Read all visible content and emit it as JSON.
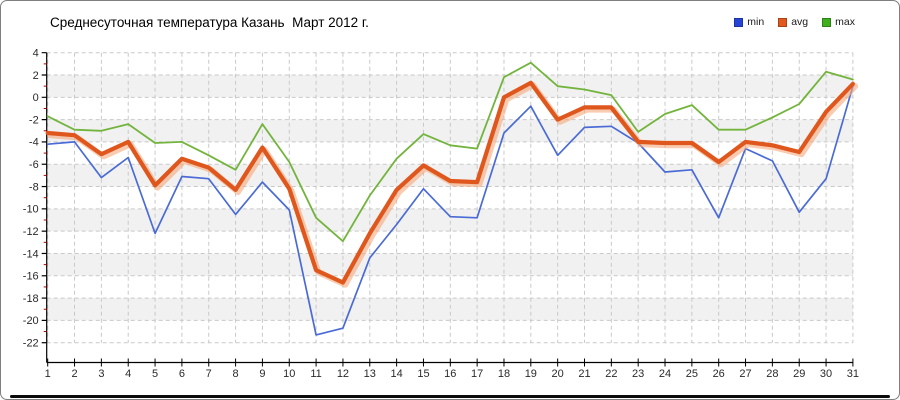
{
  "title": {
    "text": "Среднесуточная температура Казань  Март 2012 г."
  },
  "legend": {
    "items": [
      {
        "label": "min",
        "color": "#2744d4"
      },
      {
        "label": "avg",
        "color": "#e2591d"
      },
      {
        "label": "max",
        "color": "#3fae1f"
      }
    ]
  },
  "frame": {
    "border_color": "#7f7f7f",
    "bottom_bar_color": "#0a0a0a",
    "background": "#ffffff"
  },
  "chart_data": {
    "type": "line",
    "title": "Среднесуточная температура Казань  Март 2012 г.",
    "xlabel": "",
    "ylabel": "",
    "x": [
      1,
      2,
      3,
      4,
      5,
      6,
      7,
      8,
      9,
      10,
      11,
      12,
      13,
      14,
      15,
      16,
      17,
      18,
      19,
      20,
      21,
      22,
      23,
      24,
      25,
      26,
      27,
      28,
      29,
      30,
      31
    ],
    "series": [
      {
        "name": "min",
        "color": "#4a6bd5",
        "width": 1.7,
        "values": [
          -4.2,
          -4.0,
          -7.2,
          -5.4,
          -12.2,
          -7.1,
          -7.3,
          -10.5,
          -7.6,
          -10.1,
          -21.3,
          -20.7,
          -14.4,
          -11.4,
          -8.2,
          -10.7,
          -10.8,
          -3.2,
          -0.8,
          -5.2,
          -2.7,
          -2.6,
          -4.1,
          -6.7,
          -6.5,
          -10.8,
          -4.6,
          -5.7,
          -10.3,
          -7.3,
          1.0
        ]
      },
      {
        "name": "avg",
        "color": "#e0571e",
        "width": 4.2,
        "shadow": true,
        "shadow_color": "#f5a87c",
        "values": [
          -3.2,
          -3.4,
          -5.1,
          -4.0,
          -7.9,
          -5.5,
          -6.3,
          -8.3,
          -4.5,
          -8.2,
          -15.5,
          -16.6,
          -12.2,
          -8.3,
          -6.1,
          -7.5,
          -7.6,
          0.0,
          1.3,
          -2.0,
          -0.9,
          -0.9,
          -4.0,
          -4.1,
          -4.1,
          -5.8,
          -4.0,
          -4.3,
          -4.9,
          -1.3,
          1.2
        ]
      },
      {
        "name": "max",
        "color": "#72b43c",
        "width": 1.8,
        "values": [
          -1.7,
          -2.9,
          -3.0,
          -2.4,
          -4.1,
          -4.0,
          -5.2,
          -6.5,
          -2.4,
          -5.8,
          -10.8,
          -12.9,
          -8.8,
          -5.5,
          -3.3,
          -4.3,
          -4.6,
          1.8,
          3.1,
          1.0,
          0.7,
          0.2,
          -3.1,
          -1.5,
          -0.7,
          -2.9,
          -2.9,
          -1.8,
          -0.6,
          2.3,
          1.6
        ]
      }
    ],
    "ylim": [
      -22,
      4
    ],
    "y_step": 2,
    "y_ticks": [
      4,
      2,
      0,
      -2,
      -4,
      -6,
      -8,
      -10,
      -12,
      -14,
      -16,
      -18,
      -20,
      -22
    ],
    "grid": {
      "on": true,
      "color": "#c9c9c9",
      "dash": "4 3"
    },
    "bands": {
      "colors": [
        "#ffffff",
        "#f1f1f1"
      ]
    },
    "axis": {
      "line_color": "#000000",
      "label_color": "#2a2a2a",
      "minor_tick_color": "#b30000"
    },
    "legend_position": "top-right"
  }
}
